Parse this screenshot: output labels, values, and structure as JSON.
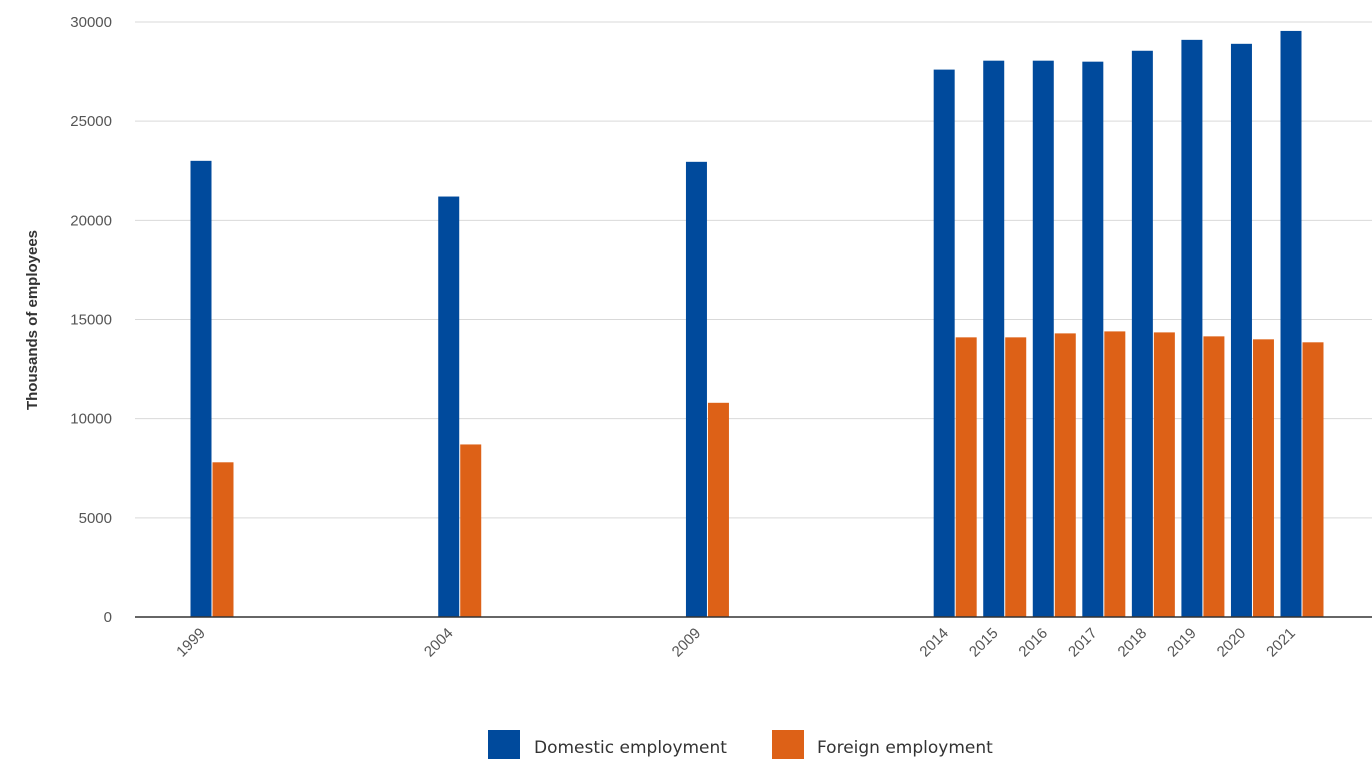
{
  "chart_data": {
    "type": "bar",
    "title": "",
    "xlabel": "",
    "ylabel": "Thousands of employees",
    "ylim": [
      0,
      30000
    ],
    "yticks": [
      0,
      5000,
      10000,
      15000,
      20000,
      25000,
      30000
    ],
    "grid": true,
    "legend_position": "bottom",
    "categories": [
      "1999",
      "2004",
      "2009",
      "2014",
      "2015",
      "2016",
      "2017",
      "2018",
      "2019",
      "2020",
      "2021"
    ],
    "series": [
      {
        "name": "Domestic employment",
        "color": "#004a9c",
        "values": [
          23000,
          21200,
          22950,
          27600,
          28050,
          28050,
          28000,
          28550,
          29100,
          28900,
          29550
        ]
      },
      {
        "name": "Foreign employment",
        "color": "#dd6117",
        "values": [
          7800,
          8700,
          10800,
          14100,
          14100,
          14300,
          14400,
          14350,
          14150,
          14000,
          13850
        ]
      }
    ]
  }
}
